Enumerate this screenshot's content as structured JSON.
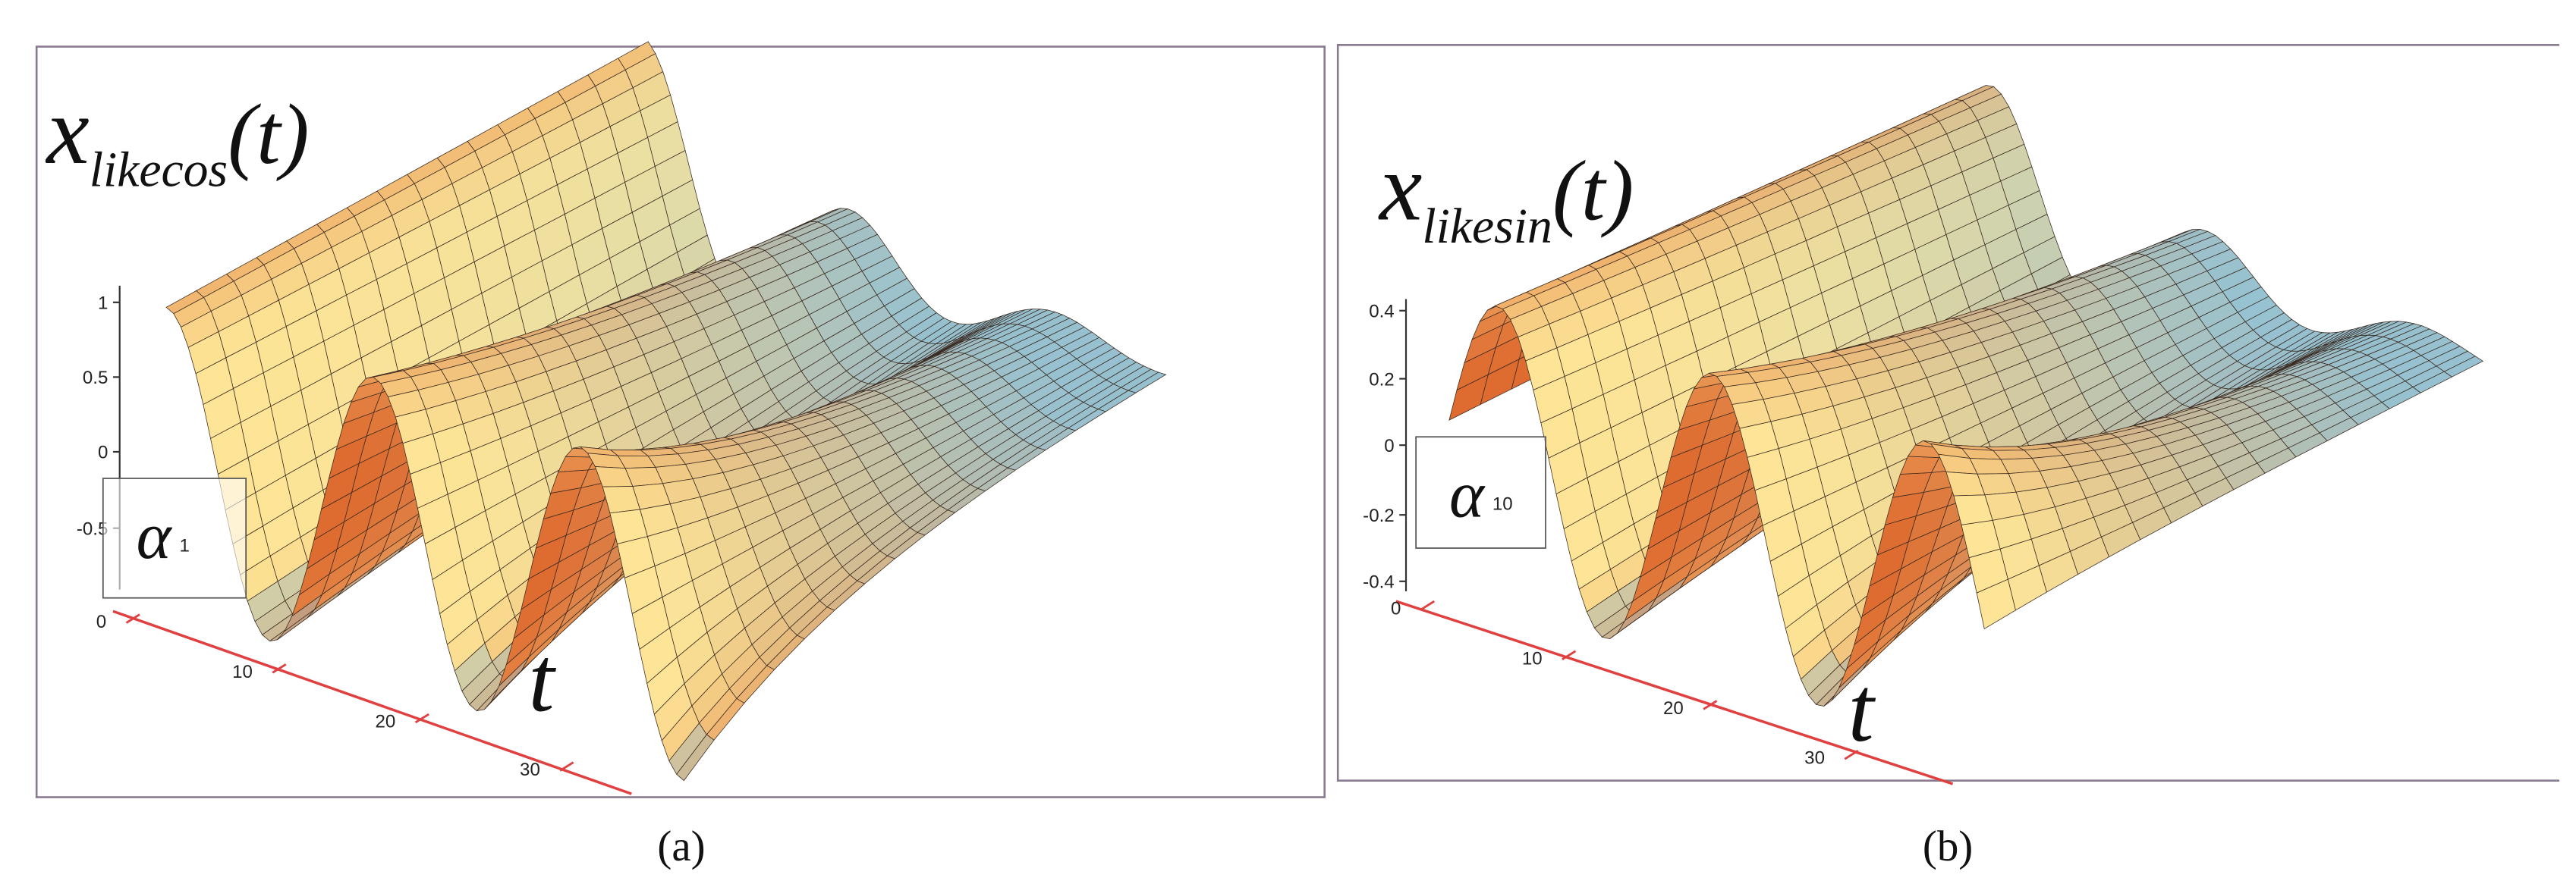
{
  "panels": [
    {
      "caption": "(a)",
      "function": {
        "symbol": "x",
        "subscript": "likecos",
        "argument": "(t)"
      },
      "z_ticks": [
        1,
        0.5,
        0,
        -0.5
      ],
      "t_ticks": [
        0,
        10,
        20,
        30
      ],
      "alpha_label": {
        "symbol": "α",
        "tick": 1
      },
      "t_label": "t"
    },
    {
      "caption": "(b)",
      "function": {
        "symbol": "x",
        "subscript": "likesin",
        "argument": "(t)"
      },
      "z_ticks": [
        0.4,
        0.2,
        0,
        -0.2,
        -0.4
      ],
      "t_ticks": [
        0,
        10,
        20,
        30
      ],
      "alpha_label": {
        "symbol": "α",
        "tick": 10
      },
      "t_label": "t"
    }
  ]
}
